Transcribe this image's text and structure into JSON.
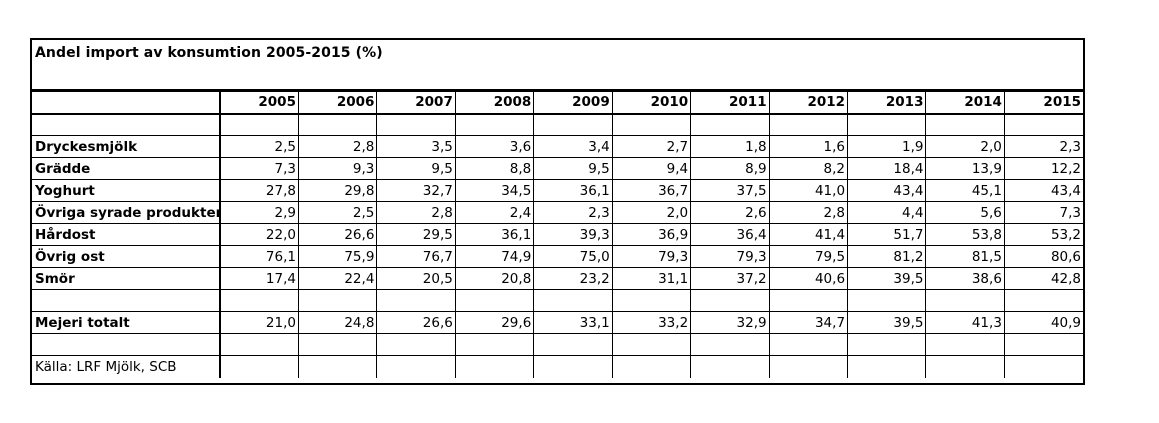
{
  "title": "Andel import av konsumtion 2005-2015 (%)",
  "years": [
    "2005",
    "2006",
    "2007",
    "2008",
    "2009",
    "2010",
    "2011",
    "2012",
    "2013",
    "2014",
    "2015"
  ],
  "rows": [
    {
      "label": "Dryckesmjölk",
      "values": [
        "2,5",
        "2,8",
        "3,5",
        "3,6",
        "3,4",
        "2,7",
        "1,8",
        "1,6",
        "1,9",
        "2,0",
        "2,3"
      ]
    },
    {
      "label": "Grädde",
      "values": [
        "7,3",
        "9,3",
        "9,5",
        "8,8",
        "9,5",
        "9,4",
        "8,9",
        "8,2",
        "18,4",
        "13,9",
        "12,2"
      ]
    },
    {
      "label": "Yoghurt",
      "values": [
        "27,8",
        "29,8",
        "32,7",
        "34,5",
        "36,1",
        "36,7",
        "37,5",
        "41,0",
        "43,4",
        "45,1",
        "43,4"
      ]
    },
    {
      "label": "Övriga syrade produkter",
      "values": [
        "2,9",
        "2,5",
        "2,8",
        "2,4",
        "2,3",
        "2,0",
        "2,6",
        "2,8",
        "4,4",
        "5,6",
        "7,3"
      ]
    },
    {
      "label": "Hårdost",
      "values": [
        "22,0",
        "26,6",
        "29,5",
        "36,1",
        "39,3",
        "36,9",
        "36,4",
        "41,4",
        "51,7",
        "53,8",
        "53,2"
      ]
    },
    {
      "label": "Övrig ost",
      "values": [
        "76,1",
        "75,9",
        "76,7",
        "74,9",
        "75,0",
        "79,3",
        "79,3",
        "79,5",
        "81,2",
        "81,5",
        "80,6"
      ]
    },
    {
      "label": "Smör",
      "values": [
        "17,4",
        "22,4",
        "20,5",
        "20,8",
        "23,2",
        "31,1",
        "37,2",
        "40,6",
        "39,5",
        "38,6",
        "42,8"
      ]
    }
  ],
  "total": {
    "label": "Mejeri totalt",
    "values": [
      "21,0",
      "24,8",
      "26,6",
      "29,6",
      "33,1",
      "33,2",
      "32,9",
      "34,7",
      "39,5",
      "41,3",
      "40,9"
    ]
  },
  "source": "Källa: LRF Mjölk, SCB"
}
